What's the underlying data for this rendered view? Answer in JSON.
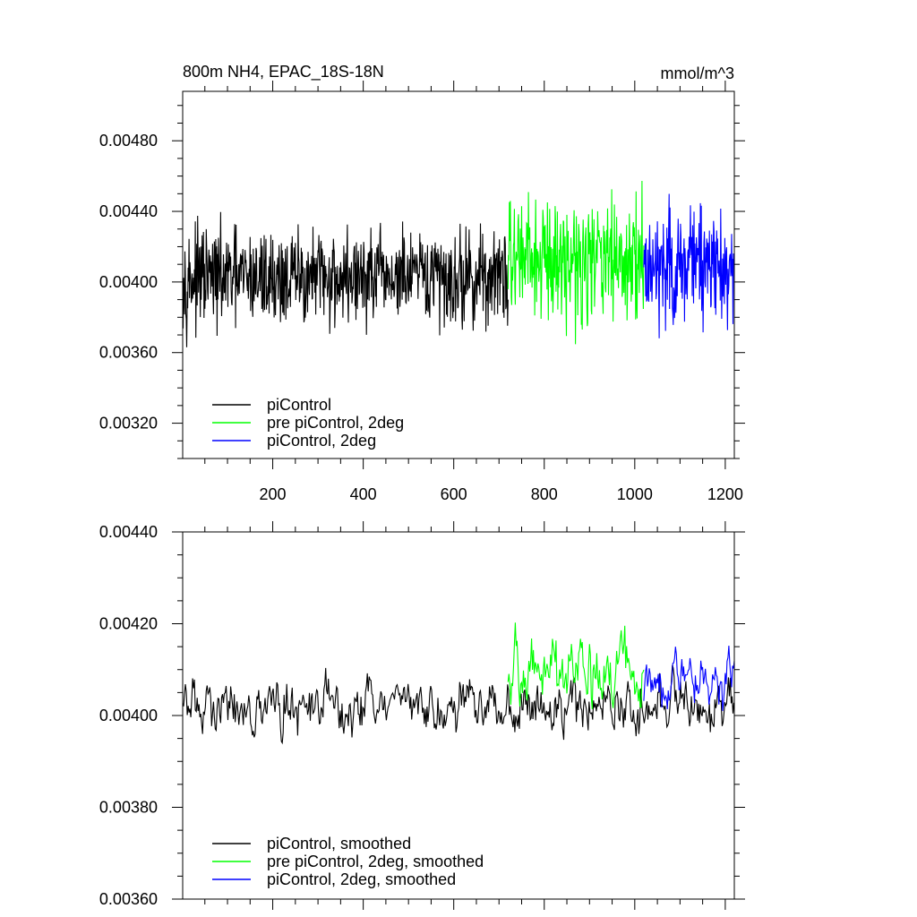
{
  "chart_data": [
    {
      "type": "line",
      "title": "800m NH4, EPAC_18S-18N",
      "units": "mmol/m^3",
      "xlabel": "",
      "ylabel": "",
      "xlim": [
        1,
        1220
      ],
      "ylim": [
        0.003,
        0.00508
      ],
      "xticks": [
        200,
        400,
        600,
        800,
        1000,
        1200
      ],
      "xtick_labels": [
        "200",
        "400",
        "600",
        "800",
        "1000",
        "1200"
      ],
      "yticks": [
        0.0032,
        0.0036,
        0.004,
        0.0044,
        0.0048
      ],
      "ytick_labels": [
        "0.00320",
        "0.00360",
        "0.00400",
        "0.00440",
        "0.00480"
      ],
      "grid": false,
      "legend_position": "bottom-left",
      "series": [
        {
          "name": "piControl",
          "color": "#000000",
          "x_range": [
            1,
            720
          ],
          "mean": 0.00402,
          "amplitude": 0.0004
        },
        {
          "name": "pre piControl, 2deg",
          "color": "#00ff00",
          "x_range": [
            720,
            1020
          ],
          "mean": 0.00412,
          "amplitude": 0.0005
        },
        {
          "name": "piControl, 2deg",
          "color": "#0000ff",
          "x_range": [
            1020,
            1220
          ],
          "mean": 0.0041,
          "amplitude": 0.00048
        }
      ]
    },
    {
      "type": "line",
      "title": "",
      "xlabel": "",
      "ylabel": "",
      "xlim": [
        1,
        1220
      ],
      "ylim": [
        0.0036,
        0.0044
      ],
      "xticks": [
        200,
        400,
        600,
        800,
        1000,
        1200
      ],
      "yticks": [
        0.0036,
        0.0038,
        0.004,
        0.0042,
        0.0044
      ],
      "ytick_labels": [
        "0.00360",
        "0.00380",
        "0.00400",
        "0.00420",
        "0.00440"
      ],
      "grid": false,
      "legend_position": "bottom-left",
      "series": [
        {
          "name": "piControl, smoothed",
          "color": "#000000",
          "x_range": [
            1,
            1220
          ],
          "mean": 0.00402,
          "amplitude": 0.0001
        },
        {
          "name": "pre piControl, 2deg, smoothed",
          "color": "#00ff00",
          "x_range": [
            720,
            1020
          ],
          "mean": 0.0041,
          "amplitude": 0.00013
        },
        {
          "name": "piControl, 2deg, smoothed",
          "color": "#0000ff",
          "x_range": [
            1020,
            1220
          ],
          "mean": 0.00408,
          "amplitude": 0.0001
        }
      ]
    }
  ]
}
